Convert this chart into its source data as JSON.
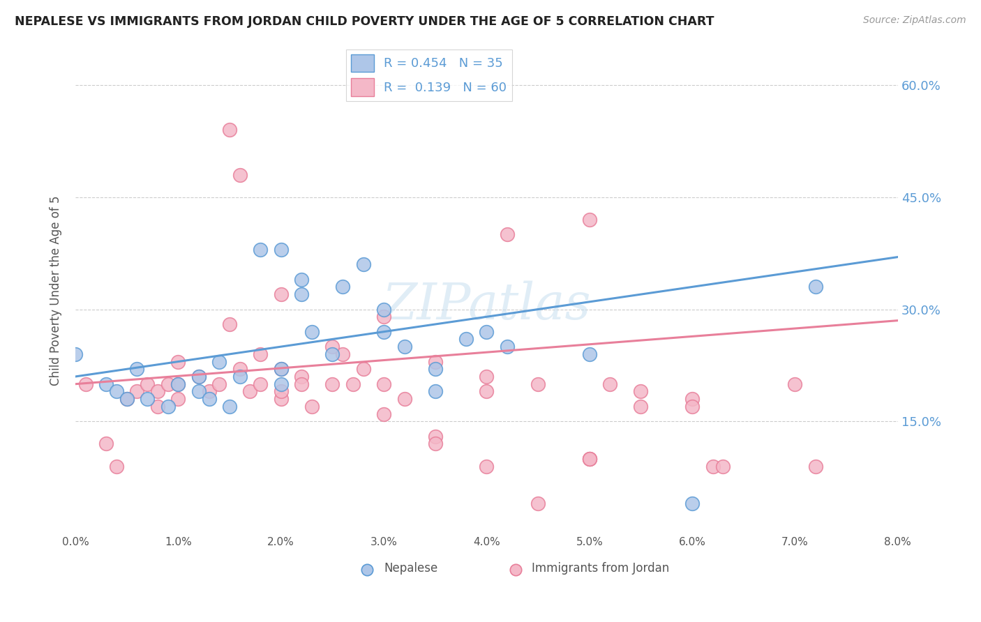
{
  "title": "NEPALESE VS IMMIGRANTS FROM JORDAN CHILD POVERTY UNDER THE AGE OF 5 CORRELATION CHART",
  "source": "Source: ZipAtlas.com",
  "ylabel": "Child Poverty Under the Age of 5",
  "watermark": "ZIPatlas",
  "blue_color": "#5b9bd5",
  "pink_color": "#e87f9a",
  "blue_fill": "#aec6e8",
  "pink_fill": "#f4b8c8",
  "nepalese_x": [
    0.0,
    0.003,
    0.004,
    0.005,
    0.006,
    0.007,
    0.009,
    0.01,
    0.012,
    0.012,
    0.013,
    0.014,
    0.015,
    0.016,
    0.018,
    0.02,
    0.02,
    0.02,
    0.022,
    0.022,
    0.023,
    0.025,
    0.026,
    0.028,
    0.03,
    0.03,
    0.032,
    0.035,
    0.035,
    0.038,
    0.04,
    0.042,
    0.05,
    0.06,
    0.072
  ],
  "nepalese_y": [
    0.24,
    0.2,
    0.19,
    0.18,
    0.22,
    0.18,
    0.17,
    0.2,
    0.21,
    0.19,
    0.18,
    0.23,
    0.17,
    0.21,
    0.38,
    0.38,
    0.2,
    0.22,
    0.32,
    0.34,
    0.27,
    0.24,
    0.33,
    0.36,
    0.27,
    0.3,
    0.25,
    0.19,
    0.22,
    0.26,
    0.27,
    0.25,
    0.24,
    0.04,
    0.33
  ],
  "jordan_x": [
    0.001,
    0.003,
    0.004,
    0.005,
    0.006,
    0.007,
    0.008,
    0.008,
    0.009,
    0.01,
    0.01,
    0.01,
    0.012,
    0.013,
    0.014,
    0.015,
    0.016,
    0.017,
    0.018,
    0.018,
    0.02,
    0.02,
    0.02,
    0.022,
    0.022,
    0.023,
    0.025,
    0.026,
    0.027,
    0.028,
    0.03,
    0.03,
    0.032,
    0.035,
    0.035,
    0.04,
    0.04,
    0.042,
    0.045,
    0.05,
    0.05,
    0.05,
    0.052,
    0.055,
    0.06,
    0.06,
    0.062,
    0.063,
    0.07,
    0.072,
    0.015,
    0.016,
    0.02,
    0.025,
    0.03,
    0.035,
    0.04,
    0.045,
    0.05,
    0.055
  ],
  "jordan_y": [
    0.2,
    0.12,
    0.09,
    0.18,
    0.19,
    0.2,
    0.17,
    0.19,
    0.2,
    0.18,
    0.2,
    0.23,
    0.21,
    0.19,
    0.2,
    0.28,
    0.22,
    0.19,
    0.24,
    0.2,
    0.18,
    0.22,
    0.19,
    0.21,
    0.2,
    0.17,
    0.2,
    0.24,
    0.2,
    0.22,
    0.29,
    0.2,
    0.18,
    0.13,
    0.12,
    0.21,
    0.19,
    0.4,
    0.2,
    0.1,
    0.1,
    0.42,
    0.2,
    0.17,
    0.18,
    0.17,
    0.09,
    0.09,
    0.2,
    0.09,
    0.54,
    0.48,
    0.32,
    0.25,
    0.16,
    0.23,
    0.09,
    0.04,
    0.1,
    0.19
  ],
  "xlim": [
    0.0,
    0.08
  ],
  "ylim": [
    0.0,
    0.65
  ],
  "ytick_vals": [
    0.15,
    0.3,
    0.45,
    0.6
  ],
  "xtick_vals": [
    0.0,
    0.01,
    0.02,
    0.03,
    0.04,
    0.05,
    0.06,
    0.07,
    0.08
  ],
  "blue_line_x": [
    0.0,
    0.08
  ],
  "blue_line_y": [
    0.21,
    0.37
  ],
  "pink_line_x": [
    0.0,
    0.08
  ],
  "pink_line_y": [
    0.2,
    0.285
  ]
}
